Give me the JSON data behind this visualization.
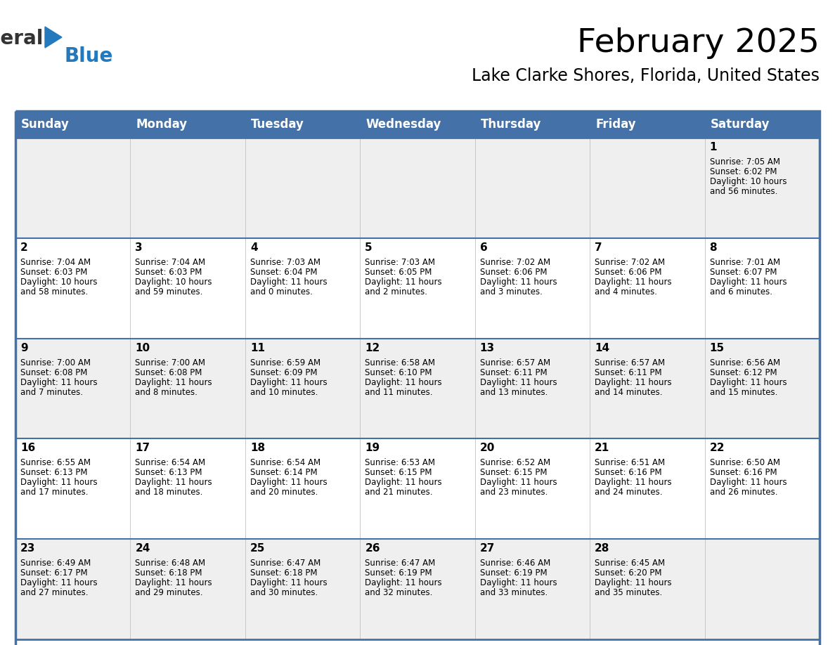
{
  "title": "February 2025",
  "subtitle": "Lake Clarke Shores, Florida, United States",
  "header_bg": "#4472A8",
  "header_text": "#FFFFFF",
  "cell_bg_row0": "#EFEFEF",
  "cell_bg_row1": "#FFFFFF",
  "cell_bg_row2": "#EFEFEF",
  "cell_bg_row3": "#FFFFFF",
  "cell_bg_row4": "#EFEFEF",
  "border_color": "#4472A8",
  "sep_color": "#4472A8",
  "day_headers": [
    "Sunday",
    "Monday",
    "Tuesday",
    "Wednesday",
    "Thursday",
    "Friday",
    "Saturday"
  ],
  "days": [
    {
      "day": 1,
      "col": 6,
      "row": 0,
      "sunrise": "7:05 AM",
      "sunset": "6:02 PM",
      "daylight": "10 hours and 56 minutes."
    },
    {
      "day": 2,
      "col": 0,
      "row": 1,
      "sunrise": "7:04 AM",
      "sunset": "6:03 PM",
      "daylight": "10 hours and 58 minutes."
    },
    {
      "day": 3,
      "col": 1,
      "row": 1,
      "sunrise": "7:04 AM",
      "sunset": "6:03 PM",
      "daylight": "10 hours and 59 minutes."
    },
    {
      "day": 4,
      "col": 2,
      "row": 1,
      "sunrise": "7:03 AM",
      "sunset": "6:04 PM",
      "daylight": "11 hours and 0 minutes."
    },
    {
      "day": 5,
      "col": 3,
      "row": 1,
      "sunrise": "7:03 AM",
      "sunset": "6:05 PM",
      "daylight": "11 hours and 2 minutes."
    },
    {
      "day": 6,
      "col": 4,
      "row": 1,
      "sunrise": "7:02 AM",
      "sunset": "6:06 PM",
      "daylight": "11 hours and 3 minutes."
    },
    {
      "day": 7,
      "col": 5,
      "row": 1,
      "sunrise": "7:02 AM",
      "sunset": "6:06 PM",
      "daylight": "11 hours and 4 minutes."
    },
    {
      "day": 8,
      "col": 6,
      "row": 1,
      "sunrise": "7:01 AM",
      "sunset": "6:07 PM",
      "daylight": "11 hours and 6 minutes."
    },
    {
      "day": 9,
      "col": 0,
      "row": 2,
      "sunrise": "7:00 AM",
      "sunset": "6:08 PM",
      "daylight": "11 hours and 7 minutes."
    },
    {
      "day": 10,
      "col": 1,
      "row": 2,
      "sunrise": "7:00 AM",
      "sunset": "6:08 PM",
      "daylight": "11 hours and 8 minutes."
    },
    {
      "day": 11,
      "col": 2,
      "row": 2,
      "sunrise": "6:59 AM",
      "sunset": "6:09 PM",
      "daylight": "11 hours and 10 minutes."
    },
    {
      "day": 12,
      "col": 3,
      "row": 2,
      "sunrise": "6:58 AM",
      "sunset": "6:10 PM",
      "daylight": "11 hours and 11 minutes."
    },
    {
      "day": 13,
      "col": 4,
      "row": 2,
      "sunrise": "6:57 AM",
      "sunset": "6:11 PM",
      "daylight": "11 hours and 13 minutes."
    },
    {
      "day": 14,
      "col": 5,
      "row": 2,
      "sunrise": "6:57 AM",
      "sunset": "6:11 PM",
      "daylight": "11 hours and 14 minutes."
    },
    {
      "day": 15,
      "col": 6,
      "row": 2,
      "sunrise": "6:56 AM",
      "sunset": "6:12 PM",
      "daylight": "11 hours and 15 minutes."
    },
    {
      "day": 16,
      "col": 0,
      "row": 3,
      "sunrise": "6:55 AM",
      "sunset": "6:13 PM",
      "daylight": "11 hours and 17 minutes."
    },
    {
      "day": 17,
      "col": 1,
      "row": 3,
      "sunrise": "6:54 AM",
      "sunset": "6:13 PM",
      "daylight": "11 hours and 18 minutes."
    },
    {
      "day": 18,
      "col": 2,
      "row": 3,
      "sunrise": "6:54 AM",
      "sunset": "6:14 PM",
      "daylight": "11 hours and 20 minutes."
    },
    {
      "day": 19,
      "col": 3,
      "row": 3,
      "sunrise": "6:53 AM",
      "sunset": "6:15 PM",
      "daylight": "11 hours and 21 minutes."
    },
    {
      "day": 20,
      "col": 4,
      "row": 3,
      "sunrise": "6:52 AM",
      "sunset": "6:15 PM",
      "daylight": "11 hours and 23 minutes."
    },
    {
      "day": 21,
      "col": 5,
      "row": 3,
      "sunrise": "6:51 AM",
      "sunset": "6:16 PM",
      "daylight": "11 hours and 24 minutes."
    },
    {
      "day": 22,
      "col": 6,
      "row": 3,
      "sunrise": "6:50 AM",
      "sunset": "6:16 PM",
      "daylight": "11 hours and 26 minutes."
    },
    {
      "day": 23,
      "col": 0,
      "row": 4,
      "sunrise": "6:49 AM",
      "sunset": "6:17 PM",
      "daylight": "11 hours and 27 minutes."
    },
    {
      "day": 24,
      "col": 1,
      "row": 4,
      "sunrise": "6:48 AM",
      "sunset": "6:18 PM",
      "daylight": "11 hours and 29 minutes."
    },
    {
      "day": 25,
      "col": 2,
      "row": 4,
      "sunrise": "6:47 AM",
      "sunset": "6:18 PM",
      "daylight": "11 hours and 30 minutes."
    },
    {
      "day": 26,
      "col": 3,
      "row": 4,
      "sunrise": "6:47 AM",
      "sunset": "6:19 PM",
      "daylight": "11 hours and 32 minutes."
    },
    {
      "day": 27,
      "col": 4,
      "row": 4,
      "sunrise": "6:46 AM",
      "sunset": "6:19 PM",
      "daylight": "11 hours and 33 minutes."
    },
    {
      "day": 28,
      "col": 5,
      "row": 4,
      "sunrise": "6:45 AM",
      "sunset": "6:20 PM",
      "daylight": "11 hours and 35 minutes."
    }
  ],
  "num_rows": 5,
  "num_cols": 7,
  "logo_general_color": "#333333",
  "logo_blue_color": "#2479BD",
  "title_fontsize": 34,
  "subtitle_fontsize": 17,
  "header_fontsize": 12,
  "day_num_fontsize": 11,
  "cell_text_fontsize": 8.5
}
